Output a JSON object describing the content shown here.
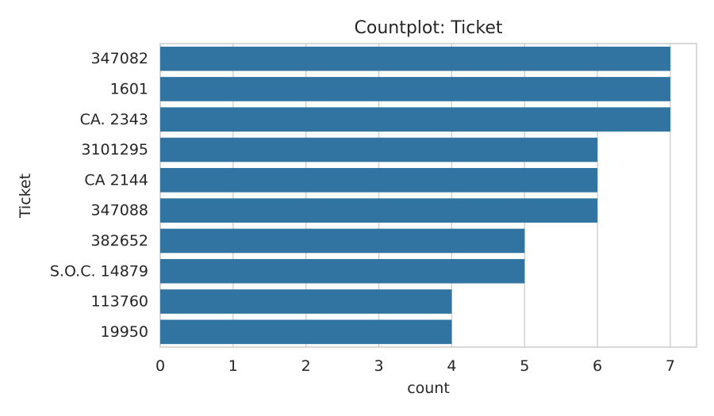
{
  "chart_data": {
    "type": "bar",
    "orientation": "horizontal",
    "title": "Countplot: Ticket",
    "xlabel": "count",
    "ylabel": "Ticket",
    "categories": [
      "347082",
      "1601",
      "CA. 2343",
      "3101295",
      "CA 2144",
      "347088",
      "382652",
      "S.O.C. 14879",
      "113760",
      "19950"
    ],
    "values": [
      7,
      7,
      7,
      6,
      6,
      6,
      5,
      5,
      4,
      4
    ],
    "xlim": [
      0,
      7.36
    ],
    "xticks": [
      0,
      1,
      2,
      3,
      4,
      5,
      6,
      7
    ],
    "grid": true,
    "legend": "none",
    "colors": {
      "bar": "#3274a1",
      "grid": "#cccccc",
      "spine": "#cccccc",
      "background": "#ffffff"
    }
  }
}
